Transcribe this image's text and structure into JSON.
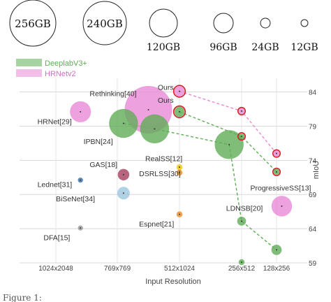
{
  "chart_data": {
    "type": "scatter",
    "subtype": "bubble",
    "title": "",
    "xlabel": "Input Resolution",
    "ylabel": "mIoU",
    "categories": [
      "1024x2048",
      "769x769",
      "512x1024",
      "256x512",
      "128x256"
    ],
    "yticks": [
      59,
      64,
      69,
      74,
      79,
      84
    ],
    "ylim": [
      59,
      86
    ],
    "grid": true,
    "size_legend": [
      {
        "label": "256GB",
        "gb": 256
      },
      {
        "label": "240GB",
        "gb": 240
      },
      {
        "label": "120GB",
        "gb": 120
      },
      {
        "label": "96GB",
        "gb": 96
      },
      {
        "label": "24GB",
        "gb": 24
      },
      {
        "label": "12GB",
        "gb": 12
      }
    ],
    "series_legend": [
      {
        "name": "DeeplabV3+",
        "color": "#5fad56"
      },
      {
        "name": "HRNetv2",
        "color": "#e98ad6"
      }
    ],
    "points": [
      {
        "label": "",
        "x": 0.4,
        "y": 81.1,
        "gb": 50,
        "color": "#e98ad6"
      },
      {
        "label": "",
        "x": 1.1,
        "y": 79.4,
        "gb": 95,
        "color": "#5fad56"
      },
      {
        "label": "",
        "x": 1.5,
        "y": 81.4,
        "gb": 256,
        "color": "#e98ad6"
      },
      {
        "label": "",
        "x": 1.6,
        "y": 78.6,
        "gb": 95,
        "color": "#5fad56"
      },
      {
        "label": "",
        "x": 2.8,
        "y": 76.3,
        "gb": 95,
        "color": "#5fad56"
      },
      {
        "label": "",
        "x": 4.15,
        "y": 67.3,
        "gb": 48,
        "color": "#e98ad6"
      },
      {
        "label": "",
        "x": 1.1,
        "y": 71.9,
        "gb": 15,
        "color": "#a63f5f"
      },
      {
        "label": "",
        "x": 0.4,
        "y": 71.1,
        "gb": 3,
        "color": "#3a6ea5"
      },
      {
        "label": "",
        "x": 1.1,
        "y": 69.2,
        "gb": 18,
        "color": "#9ec6de"
      },
      {
        "label": "",
        "x": 0.4,
        "y": 64.1,
        "gb": 3,
        "color": "#9a9a9a"
      },
      {
        "label": "",
        "x": 2.0,
        "y": 73.0,
        "gb": 4,
        "color": "#f1c40f"
      },
      {
        "label": "",
        "x": 2.0,
        "y": 72.2,
        "gb": 4,
        "color": "#f08a24"
      },
      {
        "label": "",
        "x": 2.0,
        "y": 66.1,
        "gb": 4,
        "color": "#f08a24"
      },
      {
        "label": "",
        "x": 3.0,
        "y": 65.1,
        "gb": 9,
        "color": "#5fad56"
      },
      {
        "label": "",
        "x": 3.0,
        "y": 59.1,
        "gb": 4,
        "color": "#5fad56"
      },
      {
        "label": "",
        "x": 4.0,
        "y": 60.9,
        "gb": 12,
        "color": "#5fad56"
      },
      {
        "label": "",
        "x": 2.0,
        "y": 84.1,
        "gb": 12,
        "color": "#e98ad6",
        "ring": true
      },
      {
        "label": "",
        "x": 2.0,
        "y": 81.1,
        "gb": 12,
        "color": "#5fad56",
        "ring": true
      },
      {
        "label": "",
        "x": 3.0,
        "y": 81.2,
        "gb": 4,
        "color": "#e98ad6",
        "ring": true
      },
      {
        "label": "",
        "x": 3.0,
        "y": 77.5,
        "gb": 4,
        "color": "#5fad56",
        "ring": true
      },
      {
        "label": "",
        "x": 4.0,
        "y": 75.0,
        "gb": 4,
        "color": "#e98ad6",
        "ring": true
      },
      {
        "label": "",
        "x": 4.0,
        "y": 72.3,
        "gb": 4,
        "color": "#5fad56",
        "ring": true
      }
    ],
    "annotations": [
      {
        "text": "Rethinking[40]",
        "x": 0.55,
        "y": 83.4
      },
      {
        "text": "HRNet[29]",
        "x": -0.3,
        "y": 79.3
      },
      {
        "text": "IPBN[24]",
        "x": 0.45,
        "y": 76.4
      },
      {
        "text": "Ours",
        "x": 1.65,
        "y": 84.3
      },
      {
        "text": "Ours",
        "x": 1.65,
        "y": 82.4
      },
      {
        "text": "RealSS[12]",
        "x": 1.45,
        "y": 73.9
      },
      {
        "text": "DSRLSS[30]",
        "x": 1.35,
        "y": 71.7
      },
      {
        "text": "GAS[18]",
        "x": 0.55,
        "y": 73.0
      },
      {
        "text": "Lednet[31]",
        "x": -0.3,
        "y": 70.1
      },
      {
        "text": "BiSeNet[34]",
        "x": 0.0,
        "y": 68.0
      },
      {
        "text": "DFA[15]",
        "x": -0.2,
        "y": 62.3
      },
      {
        "text": "Espnet[21]",
        "x": 1.35,
        "y": 64.3
      },
      {
        "text": "ProgressiveSS[13]",
        "x": 3.25,
        "y": 69.6
      },
      {
        "text": "LDNSB[20]",
        "x": 2.75,
        "y": 66.6
      }
    ],
    "lines": [
      {
        "color": "#5fad56",
        "points": [
          [
            1.1,
            79.4
          ],
          [
            1.6,
            78.6
          ],
          [
            2.8,
            76.3
          ],
          [
            3.0,
            65.1
          ],
          [
            4.0,
            60.9
          ]
        ]
      },
      {
        "color": "#5fad56",
        "points": [
          [
            2.0,
            81.1
          ],
          [
            3.0,
            77.5
          ],
          [
            4.0,
            72.3
          ]
        ]
      },
      {
        "color": "#e98ad6",
        "points": [
          [
            2.0,
            84.1
          ],
          [
            3.0,
            81.2
          ],
          [
            4.0,
            75.0
          ]
        ]
      }
    ]
  },
  "caption_fragment": "Figure 1:"
}
